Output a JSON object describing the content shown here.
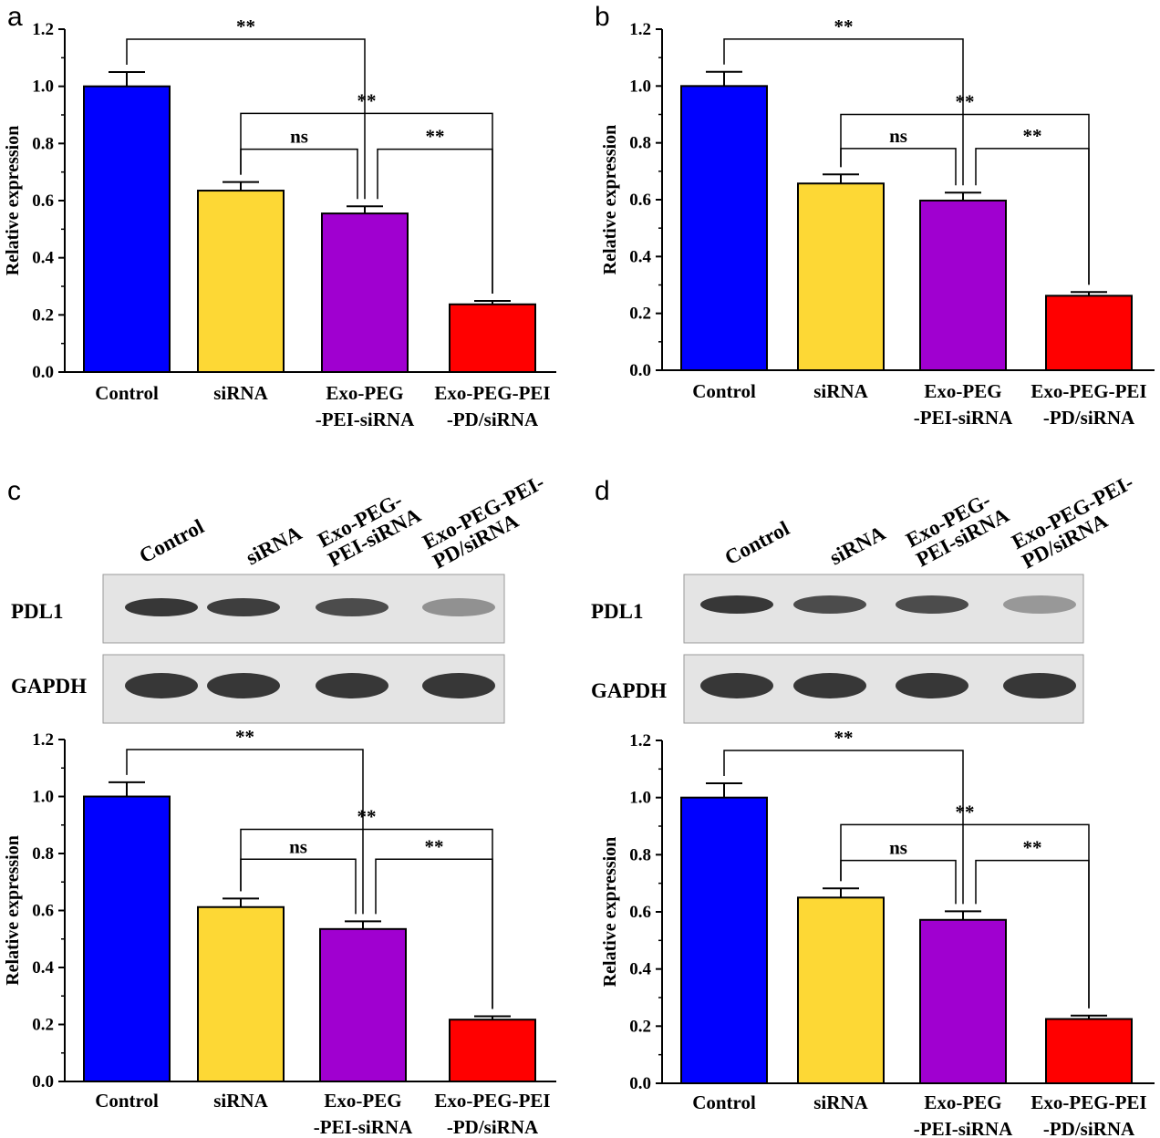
{
  "panels": [
    {
      "letter": "a",
      "blot": null
    },
    {
      "letter": "b",
      "blot": null
    },
    {
      "letter": "c",
      "blot": {
        "lane_labels": [
          [
            "Control"
          ],
          [
            "siRNA"
          ],
          [
            "Exo-PEG-",
            "PEI-siRNA"
          ],
          [
            "Exo-PEG-PEI-",
            "PD/siRNA"
          ]
        ],
        "rows": [
          {
            "label": "PDL1",
            "intensity": [
              1.0,
              0.95,
              0.85,
              0.35
            ]
          },
          {
            "label": "GAPDH",
            "intensity": [
              1.0,
              1.0,
              1.0,
              1.0
            ]
          }
        ]
      }
    },
    {
      "letter": "d",
      "blot": {
        "lane_labels": [
          [
            "Control"
          ],
          [
            "siRNA"
          ],
          [
            "Exo-PEG-",
            "PEI-siRNA"
          ],
          [
            "Exo-PEG-PEI-",
            "PD/siRNA"
          ]
        ],
        "rows": [
          {
            "label": "PDL1",
            "intensity": [
              1.0,
              0.85,
              0.85,
              0.3
            ]
          },
          {
            "label": "GAPDH",
            "intensity": [
              1.0,
              1.0,
              1.0,
              1.0
            ]
          }
        ]
      }
    }
  ],
  "chart_data": [
    {
      "type": "bar",
      "panel": "a",
      "categories": [
        [
          "Control"
        ],
        [
          "siRNA"
        ],
        [
          "Exo-PEG",
          "-PEI-siRNA"
        ],
        [
          "Exo-PEG-PEI",
          "-PD/siRNA"
        ]
      ],
      "values": [
        1.0,
        0.635,
        0.555,
        0.237
      ],
      "errors": [
        0.05,
        0.03,
        0.025,
        0.012
      ],
      "colors": [
        "#0000FF",
        "#FDD835",
        "#A000D0",
        "#FF0000"
      ],
      "ylabel": "Relative expression",
      "ylim": [
        0,
        1.2
      ],
      "yticks": [
        "0.0",
        "0.2",
        "0.4",
        "0.6",
        "0.8",
        "1.0",
        "1.2"
      ],
      "significance": [
        {
          "from": 0,
          "to": 2,
          "label": "**",
          "level": 1.165
        },
        {
          "from": 1,
          "to": 3,
          "label": "**",
          "level": 0.905
        },
        {
          "from": 1,
          "to": 2,
          "label": "ns",
          "level": 0.78
        },
        {
          "from": 2,
          "to": 3,
          "label": "**",
          "level": 0.78
        }
      ]
    },
    {
      "type": "bar",
      "panel": "b",
      "categories": [
        [
          "Control"
        ],
        [
          "siRNA"
        ],
        [
          "Exo-PEG",
          "-PEI-siRNA"
        ],
        [
          "Exo-PEG-PEI",
          "-PD/siRNA"
        ]
      ],
      "values": [
        1.0,
        0.657,
        0.597,
        0.262
      ],
      "errors": [
        0.05,
        0.032,
        0.028,
        0.013
      ],
      "colors": [
        "#0000FF",
        "#FDD835",
        "#A000D0",
        "#FF0000"
      ],
      "ylabel": "Relative expression",
      "ylim": [
        0,
        1.2
      ],
      "yticks": [
        "0.0",
        "0.2",
        "0.4",
        "0.6",
        "0.8",
        "1.0",
        "1.2"
      ],
      "significance": [
        {
          "from": 0,
          "to": 2,
          "label": "**",
          "level": 1.165
        },
        {
          "from": 1,
          "to": 3,
          "label": "**",
          "level": 0.9
        },
        {
          "from": 1,
          "to": 2,
          "label": "ns",
          "level": 0.78
        },
        {
          "from": 2,
          "to": 3,
          "label": "**",
          "level": 0.78
        }
      ]
    },
    {
      "type": "bar",
      "panel": "c",
      "categories": [
        [
          "Control"
        ],
        [
          "siRNA"
        ],
        [
          "Exo-PEG",
          "-PEI-siRNA"
        ],
        [
          "Exo-PEG-PEI",
          "-PD/siRNA"
        ]
      ],
      "values": [
        1.0,
        0.612,
        0.535,
        0.217
      ],
      "errors": [
        0.05,
        0.03,
        0.027,
        0.012
      ],
      "colors": [
        "#0000FF",
        "#FDD835",
        "#A000D0",
        "#FF0000"
      ],
      "ylabel": "Relative expression",
      "ylim": [
        0,
        1.2
      ],
      "yticks": [
        "0.0",
        "0.2",
        "0.4",
        "0.6",
        "0.8",
        "1.0",
        "1.2"
      ],
      "significance": [
        {
          "from": 0,
          "to": 2,
          "label": "**",
          "level": 1.165
        },
        {
          "from": 1,
          "to": 3,
          "label": "**",
          "level": 0.885
        },
        {
          "from": 1,
          "to": 2,
          "label": "ns",
          "level": 0.78
        },
        {
          "from": 2,
          "to": 3,
          "label": "**",
          "level": 0.78
        }
      ]
    },
    {
      "type": "bar",
      "panel": "d",
      "categories": [
        [
          "Control"
        ],
        [
          "siRNA"
        ],
        [
          "Exo-PEG",
          "-PEI-siRNA"
        ],
        [
          "Exo-PEG-PEI",
          "-PD/siRNA"
        ]
      ],
      "values": [
        1.0,
        0.65,
        0.572,
        0.225
      ],
      "errors": [
        0.05,
        0.032,
        0.03,
        0.012
      ],
      "colors": [
        "#0000FF",
        "#FDD835",
        "#A000D0",
        "#FF0000"
      ],
      "ylabel": "Relative expression",
      "ylim": [
        0,
        1.2
      ],
      "yticks": [
        "0.0",
        "0.2",
        "0.4",
        "0.6",
        "0.8",
        "1.0",
        "1.2"
      ],
      "significance": [
        {
          "from": 0,
          "to": 2,
          "label": "**",
          "level": 1.165
        },
        {
          "from": 1,
          "to": 3,
          "label": "**",
          "level": 0.905
        },
        {
          "from": 1,
          "to": 2,
          "label": "ns",
          "level": 0.78
        },
        {
          "from": 2,
          "to": 3,
          "label": "**",
          "level": 0.78
        }
      ]
    }
  ]
}
